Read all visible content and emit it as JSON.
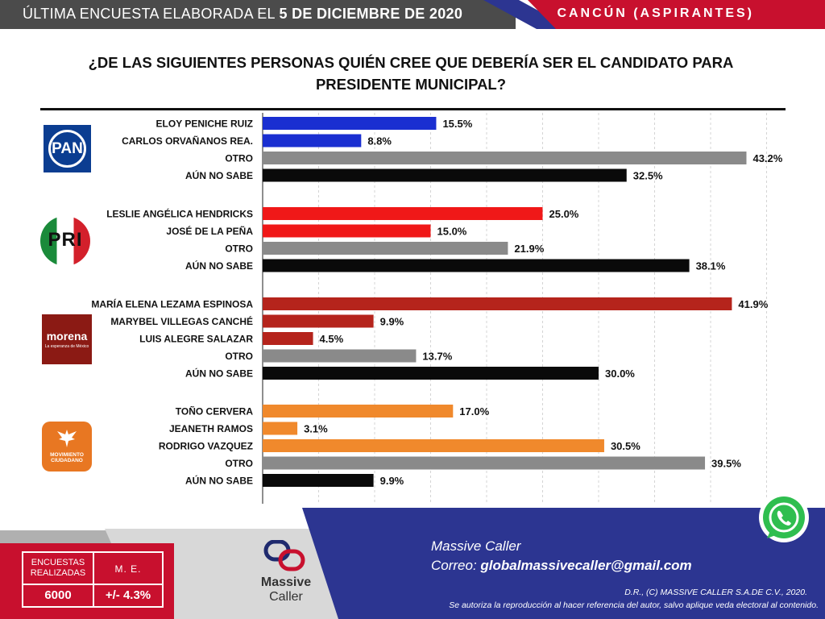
{
  "header": {
    "left_text": "ÚLTIMA ENCUESTA ELABORADA EL",
    "left_date": "5 DE DICIEMBRE DE 2020",
    "right_text": "CANCÚN (ASPIRANTES)"
  },
  "question": {
    "line1": "¿DE LAS SIGUIENTES PERSONAS QUIÉN CREE QUE DEBERÍA SER EL CANDIDATO PARA",
    "line2": "PRESIDENTE MUNICIPAL?"
  },
  "logos": {
    "pan": "PAN",
    "pri": "PRI",
    "morena": "morena",
    "morena_sub": "La esperanza de México",
    "mc_line1": "MOVIMIENTO",
    "mc_line2": "CIUDADANO"
  },
  "chart_data": {
    "type": "bar",
    "orientation": "horizontal",
    "value_suffix": "%",
    "xlim": [
      0,
      45
    ],
    "grid": true,
    "groups": [
      {
        "party": "PAN",
        "items": [
          {
            "label": "ELOY PENICHE RUIZ",
            "value": 15.5,
            "display": "15.5%",
            "color": "#1a2fd1"
          },
          {
            "label": "CARLOS ORVAÑANOS REA.",
            "value": 8.8,
            "display": "8.8%",
            "color": "#1a2fd1"
          },
          {
            "label": "OTRO",
            "value": 43.2,
            "display": "43.2%",
            "color": "#8a8a8a"
          },
          {
            "label": "AÚN NO SABE",
            "value": 32.5,
            "display": "32.5%",
            "color": "#0a0a0a"
          }
        ]
      },
      {
        "party": "PRI",
        "items": [
          {
            "label": "LESLIE ANGÉLICA HENDRICKS",
            "value": 25.0,
            "display": "25.0%",
            "color": "#f01818"
          },
          {
            "label": "JOSÉ DE LA PEÑA",
            "value": 15.0,
            "display": "15.0%",
            "color": "#f01818"
          },
          {
            "label": "OTRO",
            "value": 21.9,
            "display": "21.9%",
            "color": "#8a8a8a"
          },
          {
            "label": "AÚN NO SABE",
            "value": 38.1,
            "display": "38.1%",
            "color": "#0a0a0a"
          }
        ]
      },
      {
        "party": "MORENA",
        "items": [
          {
            "label": "MARÍA ELENA LEZAMA ESPINOSA",
            "value": 41.9,
            "display": "41.9%",
            "color": "#b5241c"
          },
          {
            "label": "MARYBEL VILLEGAS CANCHÉ",
            "value": 9.9,
            "display": "9.9%",
            "color": "#b5241c"
          },
          {
            "label": "LUIS ALEGRE SALAZAR",
            "value": 4.5,
            "display": "4.5%",
            "color": "#b5241c"
          },
          {
            "label": "OTRO",
            "value": 13.7,
            "display": "13.7%",
            "color": "#8a8a8a"
          },
          {
            "label": "AÚN NO SABE",
            "value": 30.0,
            "display": "30.0%",
            "color": "#0a0a0a"
          }
        ]
      },
      {
        "party": "MOVIMIENTO CIUDADANO",
        "items": [
          {
            "label": "TOÑO CERVERA",
            "value": 17.0,
            "display": "17.0%",
            "color": "#f0892c"
          },
          {
            "label": "JEANETH RAMOS",
            "value": 3.1,
            "display": "3.1%",
            "color": "#f0892c"
          },
          {
            "label": "RODRIGO VAZQUEZ",
            "value": 30.5,
            "display": "30.5%",
            "color": "#f0892c"
          },
          {
            "label": "OTRO",
            "value": 39.5,
            "display": "39.5%",
            "color": "#8a8a8a"
          },
          {
            "label": "AÚN NO SABE",
            "value": 9.9,
            "display": "9.9%",
            "color": "#0a0a0a"
          }
        ]
      }
    ]
  },
  "stats": {
    "surveys_label": "ENCUESTAS REALIZADAS",
    "me_label": "M. E.",
    "surveys_value": "6000",
    "me_value": "+/- 4.3%"
  },
  "footer": {
    "brand": "Massive Caller",
    "email_label": "Correo:",
    "email": "globalmassivecaller@gmail.com",
    "copyright": "D.R., (C) MASSIVE CALLER S.A.DE C.V., 2020.",
    "notice": "Se autoriza la reproducción  al hacer referencia  del autor,  salvo aplique veda electoral  al contenido.",
    "logo_line1": "Massive",
    "logo_line2": "Caller"
  }
}
